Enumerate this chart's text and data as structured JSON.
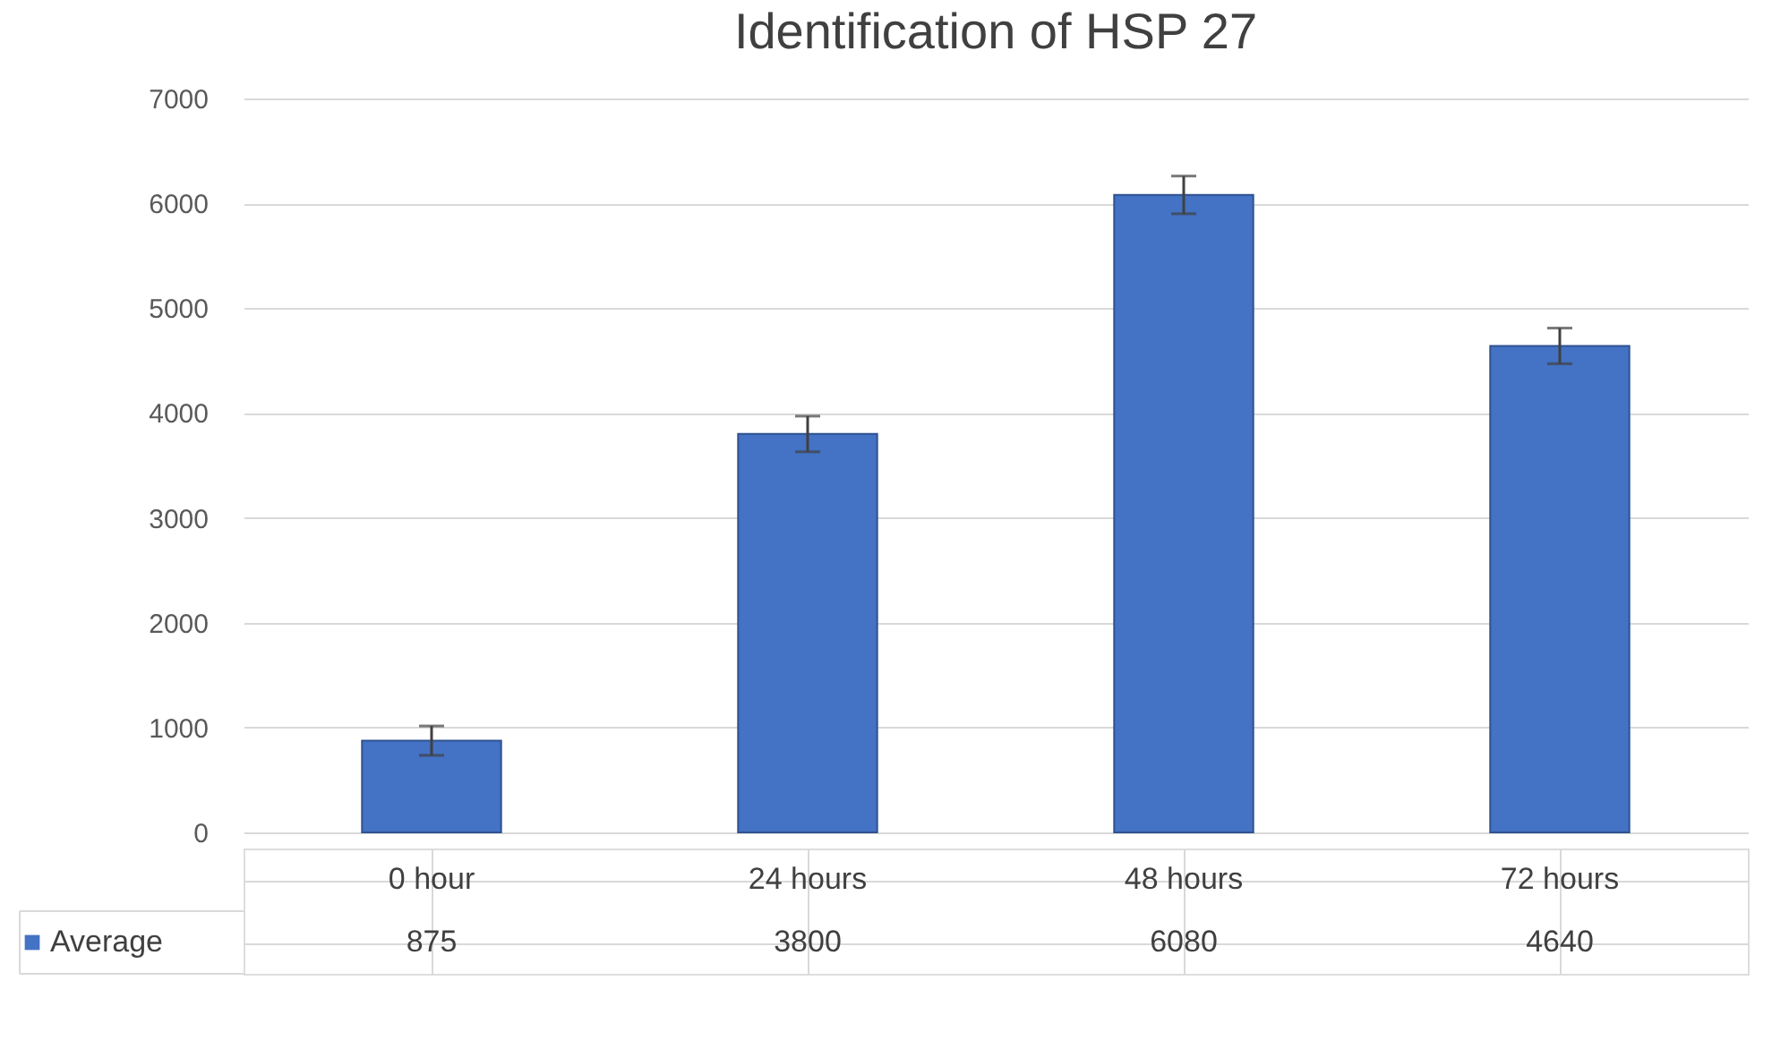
{
  "chart_data": {
    "type": "bar",
    "title": "Identification of HSP 27",
    "categories": [
      "0 hour",
      "24 hours",
      "48 hours",
      "72 hours"
    ],
    "series": [
      {
        "name": "Average",
        "color": "#4472c4",
        "values": [
          875,
          3800,
          6080,
          4640
        ],
        "errors": [
          140,
          170,
          180,
          170
        ]
      }
    ],
    "ylim": [
      0,
      7000
    ],
    "yticks": [
      0,
      1000,
      2000,
      3000,
      4000,
      5000,
      6000,
      7000
    ],
    "grid": "y",
    "data_labels": true
  }
}
